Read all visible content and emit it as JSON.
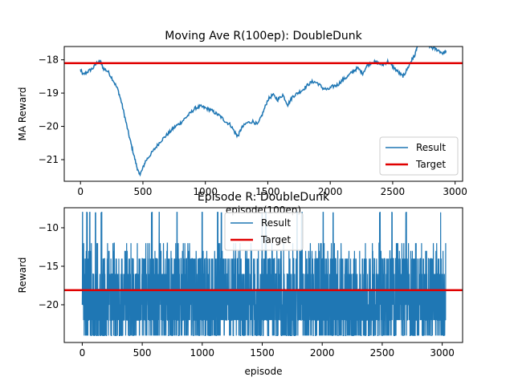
{
  "chart_data": [
    {
      "type": "line",
      "title": "Moving Ave R(100ep): DoubleDunk",
      "xlabel": "episode(100ep)",
      "ylabel": "MA Reward",
      "xlim": [
        -130,
        3060
      ],
      "ylim": [
        -21.65,
        -17.6
      ],
      "xticks": [
        0,
        500,
        1000,
        1500,
        2000,
        2500,
        3000
      ],
      "xtick_labels": [
        "0",
        "500",
        "1000",
        "1500",
        "2000",
        "2500",
        "3000"
      ],
      "yticks": [
        -21,
        -20,
        -19,
        -18
      ],
      "ytick_labels": [
        "−21",
        "−20",
        "−19",
        "−18"
      ],
      "legend": {
        "position": "lower-right",
        "entries": [
          "Result",
          "Target"
        ]
      },
      "series": [
        {
          "name": "Result",
          "color": "#1f77b4",
          "kind": "noisy-line",
          "noise": 0.05,
          "points": [
            [
              0,
              -18.3
            ],
            [
              20,
              -18.45
            ],
            [
              60,
              -18.35
            ],
            [
              100,
              -18.25
            ],
            [
              140,
              -18.05
            ],
            [
              160,
              -18.05
            ],
            [
              180,
              -18.25
            ],
            [
              220,
              -18.35
            ],
            [
              260,
              -18.6
            ],
            [
              300,
              -18.9
            ],
            [
              330,
              -19.3
            ],
            [
              360,
              -19.8
            ],
            [
              390,
              -20.3
            ],
            [
              420,
              -20.75
            ],
            [
              450,
              -21.2
            ],
            [
              470,
              -21.45
            ],
            [
              490,
              -21.35
            ],
            [
              520,
              -21.05
            ],
            [
              560,
              -20.85
            ],
            [
              600,
              -20.65
            ],
            [
              640,
              -20.45
            ],
            [
              680,
              -20.3
            ],
            [
              720,
              -20.15
            ],
            [
              760,
              -20.0
            ],
            [
              800,
              -19.9
            ],
            [
              840,
              -19.75
            ],
            [
              880,
              -19.6
            ],
            [
              920,
              -19.45
            ],
            [
              960,
              -19.4
            ],
            [
              1000,
              -19.45
            ],
            [
              1040,
              -19.5
            ],
            [
              1080,
              -19.6
            ],
            [
              1120,
              -19.7
            ],
            [
              1160,
              -19.85
            ],
            [
              1200,
              -19.95
            ],
            [
              1240,
              -20.2
            ],
            [
              1260,
              -20.3
            ],
            [
              1290,
              -20.05
            ],
            [
              1330,
              -19.9
            ],
            [
              1380,
              -19.85
            ],
            [
              1420,
              -19.95
            ],
            [
              1460,
              -19.6
            ],
            [
              1500,
              -19.2
            ],
            [
              1540,
              -19.05
            ],
            [
              1580,
              -19.2
            ],
            [
              1620,
              -19.05
            ],
            [
              1660,
              -19.35
            ],
            [
              1700,
              -19.1
            ],
            [
              1740,
              -19.0
            ],
            [
              1780,
              -18.9
            ],
            [
              1820,
              -18.75
            ],
            [
              1860,
              -18.65
            ],
            [
              1900,
              -18.7
            ],
            [
              1940,
              -18.85
            ],
            [
              1980,
              -18.9
            ],
            [
              2020,
              -18.8
            ],
            [
              2060,
              -18.75
            ],
            [
              2100,
              -18.6
            ],
            [
              2140,
              -18.5
            ],
            [
              2180,
              -18.35
            ],
            [
              2220,
              -18.25
            ],
            [
              2260,
              -18.4
            ],
            [
              2300,
              -18.15
            ],
            [
              2340,
              -18.05
            ],
            [
              2380,
              -18.1
            ],
            [
              2420,
              -18.15
            ],
            [
              2460,
              -18.05
            ],
            [
              2500,
              -18.2
            ],
            [
              2540,
              -18.35
            ],
            [
              2580,
              -18.5
            ],
            [
              2600,
              -18.4
            ],
            [
              2640,
              -18.1
            ],
            [
              2660,
              -17.95
            ],
            [
              2680,
              -17.85
            ],
            [
              2700,
              -17.55
            ],
            [
              2720,
              -17.4
            ],
            [
              2740,
              -17.45
            ],
            [
              2780,
              -17.55
            ],
            [
              2820,
              -17.65
            ],
            [
              2860,
              -17.7
            ],
            [
              2900,
              -17.8
            ],
            [
              2930,
              -17.75
            ]
          ]
        },
        {
          "name": "Target",
          "color": "#e00000",
          "kind": "hline",
          "y": -18.1
        }
      ]
    },
    {
      "type": "line",
      "title": "Episode R: DoubleDunk",
      "xlabel": "episode",
      "ylabel": "Reward",
      "xlim": [
        -150,
        3170
      ],
      "ylim": [
        -24.9,
        -7.4
      ],
      "xticks": [
        0,
        500,
        1000,
        1500,
        2000,
        2500,
        3000
      ],
      "xtick_labels": [
        "0",
        "500",
        "1000",
        "1500",
        "2000",
        "2500",
        "3000"
      ],
      "yticks": [
        -20,
        -15,
        -10
      ],
      "ytick_labels": [
        "−20",
        "−15",
        "−10"
      ],
      "legend": {
        "position": "upper-center",
        "entries": [
          "Result",
          "Target"
        ]
      },
      "series": [
        {
          "name": "Result",
          "color": "#1f77b4",
          "kind": "dense-episodes",
          "episodes": 3030,
          "range": [
            -24,
            -8
          ],
          "typical_range": [
            -22,
            -14
          ],
          "spikes": [
            0,
            40,
            65,
            110,
            160,
            580,
            640,
            790,
            1000,
            1130,
            1160,
            1500,
            1530,
            1790,
            1830,
            2010,
            2090,
            2480,
            2580,
            2700,
            2990
          ]
        },
        {
          "name": "Target",
          "color": "#e00000",
          "kind": "hline",
          "y": -18.1
        }
      ]
    }
  ]
}
